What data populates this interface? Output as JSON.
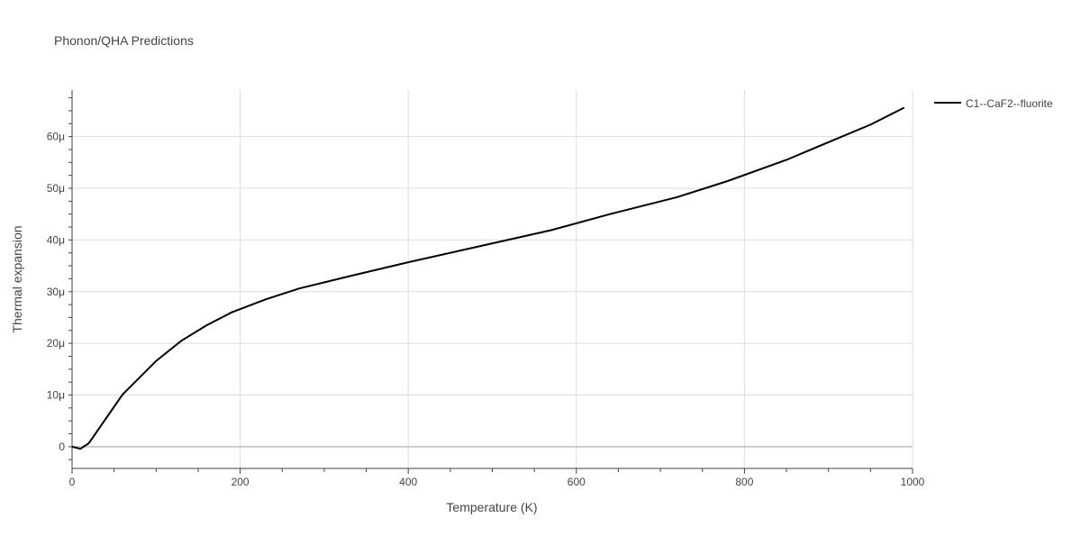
{
  "chart_data": {
    "type": "line",
    "title": "Phonon/QHA Predictions",
    "xlabel": "Temperature (K)",
    "ylabel": "Thermal expansion",
    "xlim": [
      0,
      1000
    ],
    "ylim": [
      -4.2e-06,
      6.9e-05
    ],
    "xticks": [
      0,
      200,
      400,
      600,
      800,
      1000
    ],
    "xtick_labels": [
      "0",
      "200",
      "400",
      "600",
      "800",
      "1000"
    ],
    "yticks": [
      0,
      1e-05,
      2e-05,
      3e-05,
      4e-05,
      5e-05,
      6e-05
    ],
    "ytick_labels": [
      "0",
      "10μ",
      "20μ",
      "30μ",
      "40μ",
      "50μ",
      "60μ"
    ],
    "grid": true,
    "legend_position": "top-right",
    "series": [
      {
        "name": "C1--CaF2--fluorite",
        "color": "#000000",
        "x": [
          0,
          10,
          20,
          60,
          100,
          130,
          160,
          190,
          230,
          270,
          330,
          400,
          480,
          570,
          640,
          720,
          780,
          850,
          910,
          950,
          990
        ],
        "y": [
          0,
          -4e-07,
          7e-07,
          1.01e-05,
          1.66e-05,
          2.05e-05,
          2.35e-05,
          2.6e-05,
          2.85e-05,
          3.06e-05,
          3.3e-05,
          3.57e-05,
          3.86e-05,
          4.19e-05,
          4.5e-05,
          4.83e-05,
          5.14e-05,
          5.55e-05,
          5.96e-05,
          6.23e-05,
          6.56e-05
        ]
      }
    ]
  }
}
